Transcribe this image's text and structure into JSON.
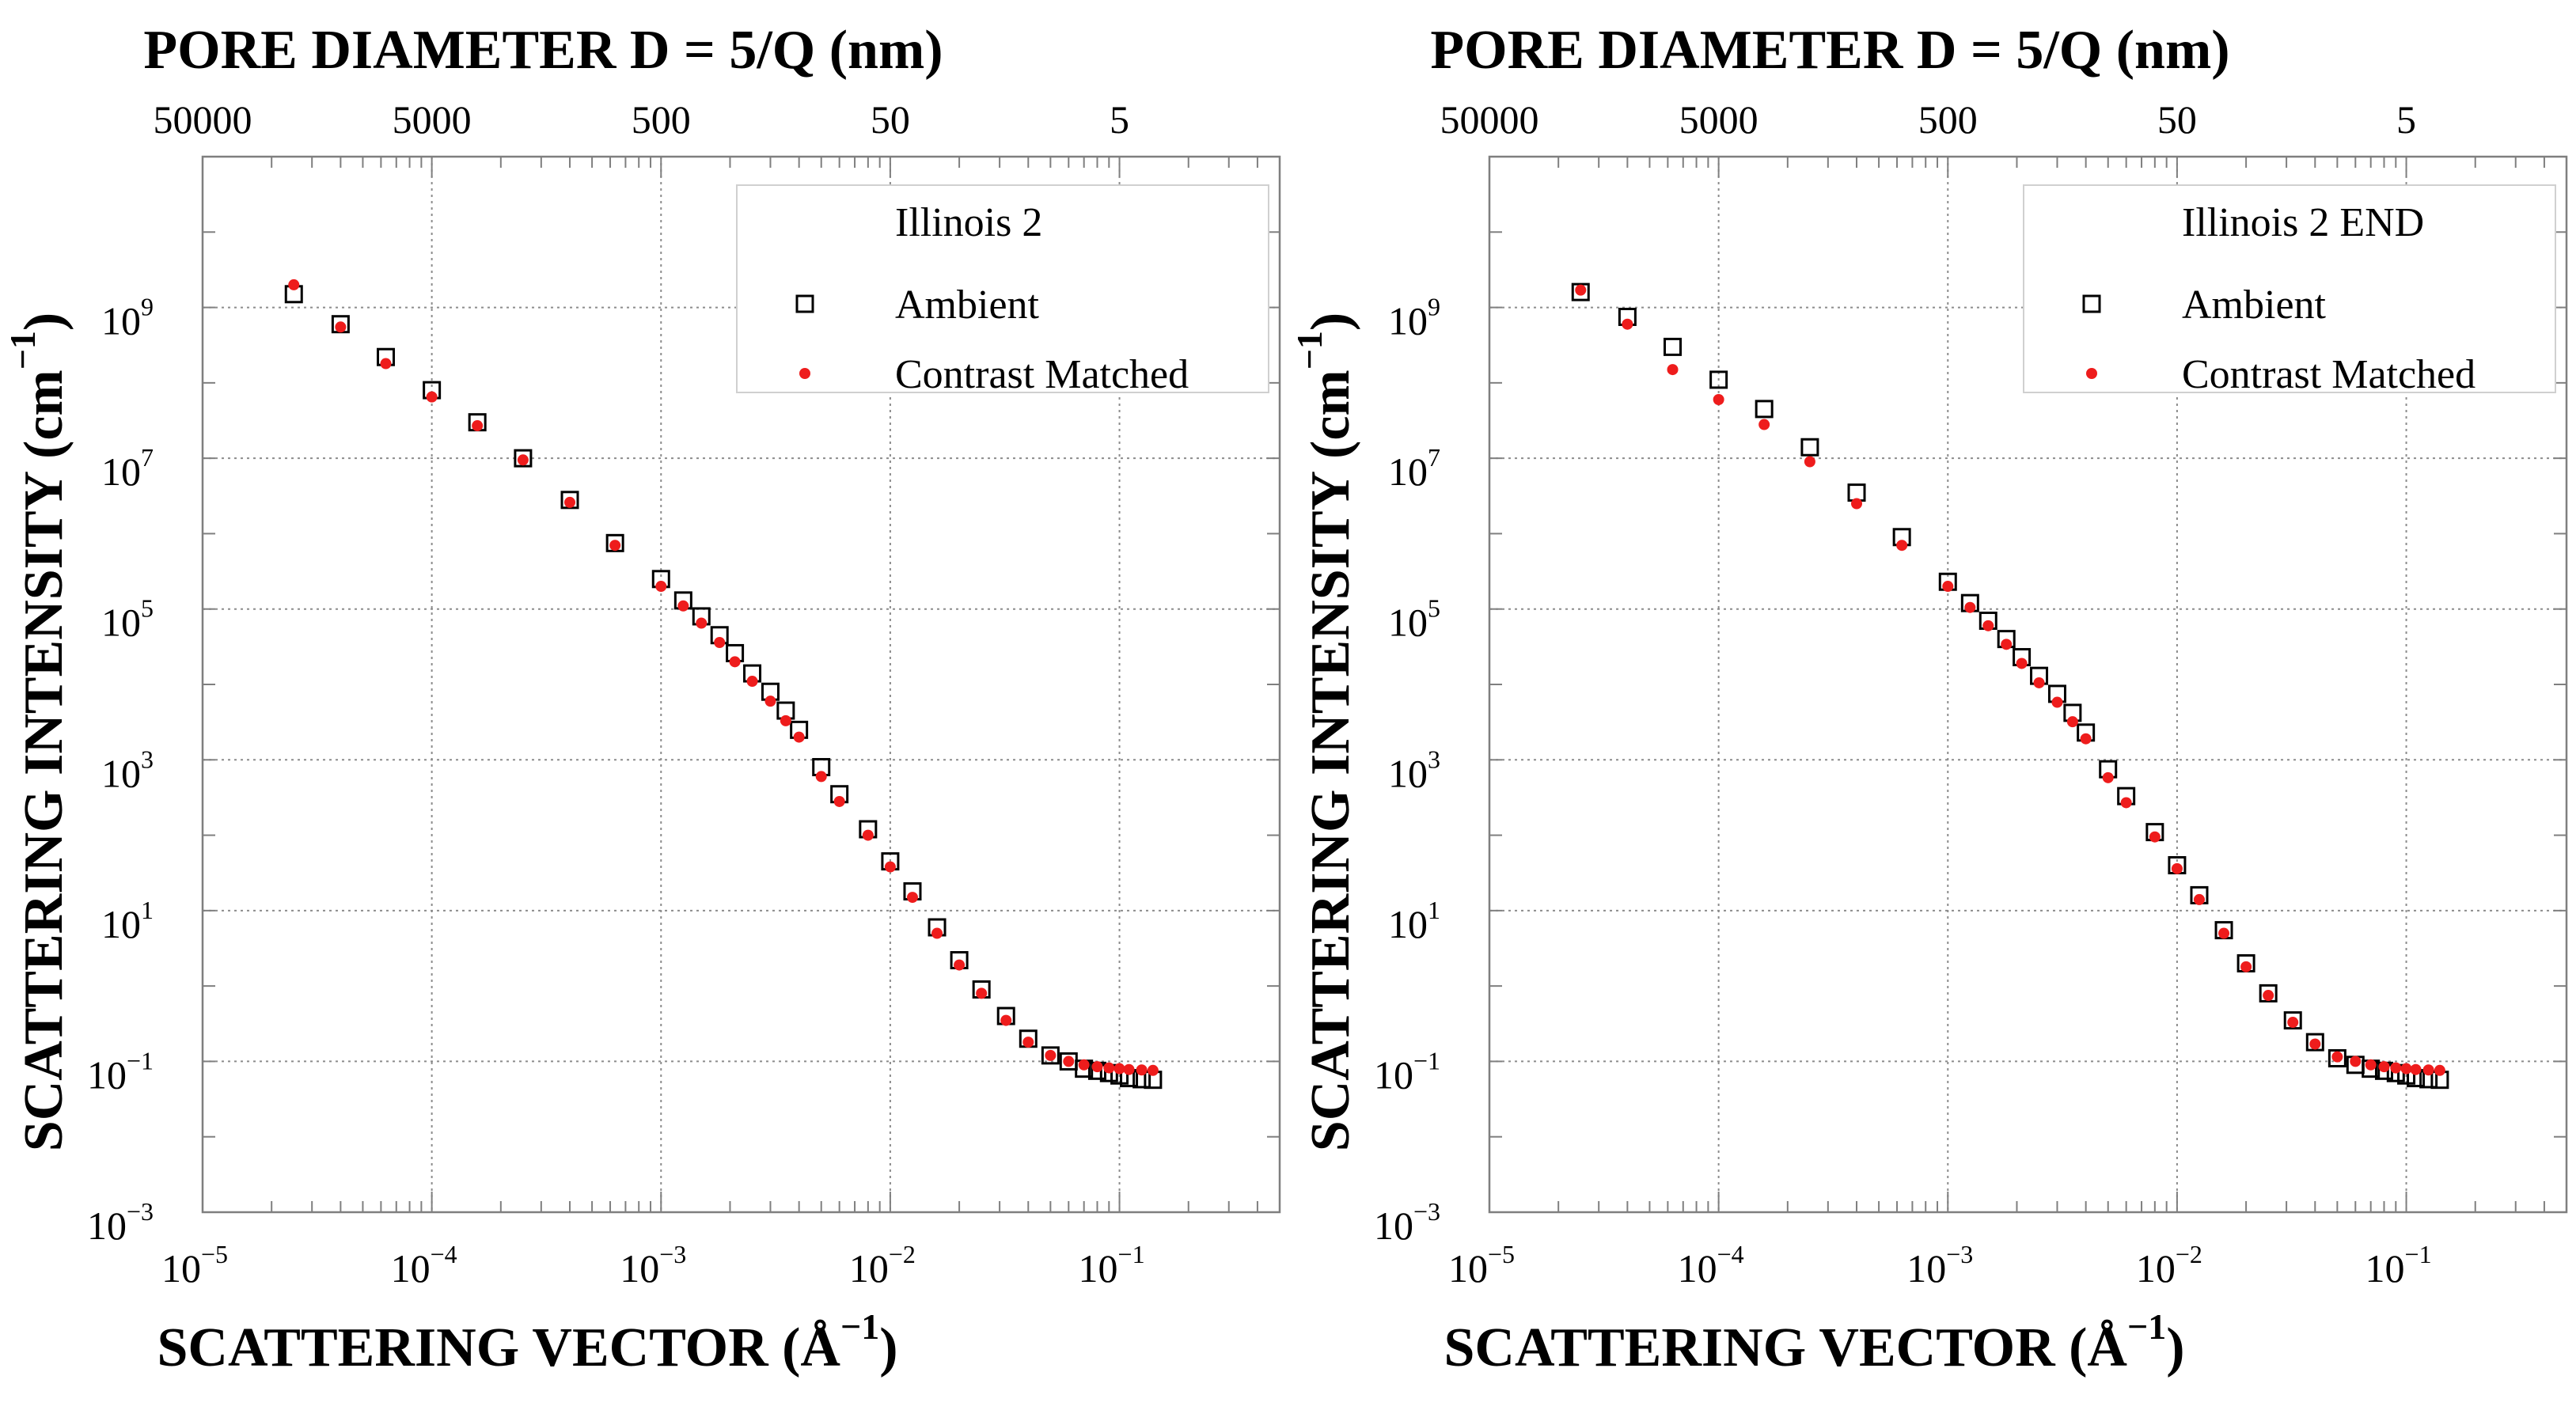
{
  "chart_data": [
    {
      "type": "scatter",
      "panel": "left",
      "legend_title": "Illinois 2",
      "legend_location": "top-right",
      "top_axis_title": "PORE DIAMETER D = 5/Q (nm)",
      "top_tick_labels": [
        "50000",
        "5000",
        "500",
        "50",
        "5"
      ],
      "top_tick_q": [
        1e-05,
        0.0001,
        0.001,
        0.01,
        0.1
      ],
      "xlabel": "SCATTERING VECTOR (Å",
      "xlabel_exp": "−1",
      "xlabel_close": ")",
      "ylabel": "SCATTERING INTENSITY (cm",
      "ylabel_exp": "−1",
      "ylabel_close": ")",
      "xscale": "log",
      "yscale": "log",
      "xlim": [
        1e-05,
        0.5
      ],
      "ylim": [
        0.001,
        100000000000.0
      ],
      "xticks": [
        1e-05,
        0.0001,
        0.001,
        0.01,
        0.1
      ],
      "xtick_labels": [
        [
          "10",
          "−5"
        ],
        [
          "10",
          "−4"
        ],
        [
          "10",
          "−3"
        ],
        [
          "10",
          "−2"
        ],
        [
          "10",
          "−1"
        ]
      ],
      "yticks": [
        0.001,
        0.1,
        10,
        1000,
        100000,
        10000000,
        1000000000
      ],
      "ytick_labels": [
        [
          "10",
          "−3"
        ],
        [
          "10",
          "−1"
        ],
        [
          "10",
          "1"
        ],
        [
          "10",
          "3"
        ],
        [
          "10",
          "5"
        ],
        [
          "10",
          "7"
        ],
        [
          "10",
          "9"
        ]
      ],
      "grid": true,
      "series": [
        {
          "name": "Ambient",
          "marker": "open-square",
          "color": "#000000",
          "x": [
            2.5e-05,
            4e-05,
            6.3e-05,
            0.0001,
            0.000158,
            0.00025,
            0.0004,
            0.00063,
            0.001,
            0.00125,
            0.0015,
            0.0018,
            0.0021,
            0.0025,
            0.003,
            0.0035,
            0.004,
            0.005,
            0.006,
            0.008,
            0.01,
            0.0125,
            0.016,
            0.02,
            0.025,
            0.032,
            0.04,
            0.05,
            0.06,
            0.07,
            0.08,
            0.09,
            0.1,
            0.11,
            0.125,
            0.14
          ],
          "y": [
            1500000000,
            600000000,
            220000000,
            80000000,
            30000000,
            10000000,
            2800000,
            750000,
            250000,
            130000,
            80000,
            45000,
            26000,
            14000,
            8000,
            4500,
            2500,
            800,
            350,
            120,
            45,
            18,
            6,
            2.2,
            0.9,
            0.4,
            0.2,
            0.12,
            0.1,
            0.08,
            0.075,
            0.07,
            0.065,
            0.06,
            0.058,
            0.057
          ]
        },
        {
          "name": "Contrast Matched",
          "marker": "dot",
          "color": "#ee1c1c",
          "x": [
            2.5e-05,
            4e-05,
            6.3e-05,
            0.0001,
            0.000158,
            0.00025,
            0.0004,
            0.00063,
            0.001,
            0.00125,
            0.0015,
            0.0018,
            0.0021,
            0.0025,
            0.003,
            0.0035,
            0.004,
            0.005,
            0.006,
            0.008,
            0.01,
            0.0125,
            0.016,
            0.02,
            0.025,
            0.032,
            0.04,
            0.05,
            0.06,
            0.07,
            0.08,
            0.09,
            0.1,
            0.11,
            0.125,
            0.14
          ],
          "y": [
            2000000000,
            550000000,
            180000000,
            65000000,
            27000000,
            9500000,
            2600000,
            700000,
            200000,
            110000,
            65000,
            36000,
            20000,
            11000,
            6000,
            3300,
            2000,
            600,
            280,
            100,
            38,
            15,
            5,
            1.9,
            0.8,
            0.35,
            0.18,
            0.12,
            0.1,
            0.09,
            0.085,
            0.082,
            0.08,
            0.078,
            0.077,
            0.076
          ]
        }
      ]
    },
    {
      "type": "scatter",
      "panel": "right",
      "legend_title": "Illinois 2 END",
      "legend_location": "top-right",
      "top_axis_title": "PORE DIAMETER D = 5/Q (nm)",
      "top_tick_labels": [
        "50000",
        "5000",
        "500",
        "50",
        "5"
      ],
      "top_tick_q": [
        1e-05,
        0.0001,
        0.001,
        0.01,
        0.1
      ],
      "xlabel": "SCATTERING VECTOR (Å",
      "xlabel_exp": "−1",
      "xlabel_close": ")",
      "ylabel": "SCATTERING INTENSITY (cm",
      "ylabel_exp": "−1",
      "ylabel_close": ")",
      "xscale": "log",
      "yscale": "log",
      "xlim": [
        1e-05,
        0.5
      ],
      "ylim": [
        0.001,
        100000000000.0
      ],
      "xticks": [
        1e-05,
        0.0001,
        0.001,
        0.01,
        0.1
      ],
      "xtick_labels": [
        [
          "10",
          "−5"
        ],
        [
          "10",
          "−4"
        ],
        [
          "10",
          "−3"
        ],
        [
          "10",
          "−2"
        ],
        [
          "10",
          "−1"
        ]
      ],
      "yticks": [
        0.001,
        0.1,
        10,
        1000,
        100000,
        10000000,
        1000000000
      ],
      "ytick_labels": [
        [
          "10",
          "−3"
        ],
        [
          "10",
          "−1"
        ],
        [
          "10",
          "1"
        ],
        [
          "10",
          "3"
        ],
        [
          "10",
          "5"
        ],
        [
          "10",
          "7"
        ],
        [
          "10",
          "9"
        ]
      ],
      "grid": true,
      "series": [
        {
          "name": "Ambient",
          "marker": "open-square",
          "color": "#000000",
          "x": [
            2.5e-05,
            4e-05,
            6.3e-05,
            0.0001,
            0.000158,
            0.00025,
            0.0004,
            0.00063,
            0.001,
            0.00125,
            0.0015,
            0.0018,
            0.0021,
            0.0025,
            0.003,
            0.0035,
            0.004,
            0.005,
            0.006,
            0.008,
            0.01,
            0.0125,
            0.016,
            0.02,
            0.025,
            0.032,
            0.04,
            0.05,
            0.06,
            0.07,
            0.08,
            0.09,
            0.1,
            0.11,
            0.125,
            0.14
          ],
          "y": [
            1600000000,
            750000000,
            300000000,
            110000000,
            45000000,
            14000000,
            3500000,
            900000,
            230000,
            120000,
            70000,
            40000,
            23000,
            13000,
            7500,
            4200,
            2300,
            750,
            330,
            110,
            40,
            16,
            5.5,
            2,
            0.8,
            0.35,
            0.18,
            0.11,
            0.09,
            0.08,
            0.075,
            0.07,
            0.065,
            0.06,
            0.058,
            0.057
          ]
        },
        {
          "name": "Contrast Matched",
          "marker": "dot",
          "color": "#ee1c1c",
          "x": [
            2.5e-05,
            4e-05,
            6.3e-05,
            0.0001,
            0.000158,
            0.00025,
            0.0004,
            0.00063,
            0.001,
            0.00125,
            0.0015,
            0.0018,
            0.0021,
            0.0025,
            0.003,
            0.0035,
            0.004,
            0.005,
            0.006,
            0.008,
            0.01,
            0.0125,
            0.016,
            0.02,
            0.025,
            0.032,
            0.04,
            0.05,
            0.06,
            0.07,
            0.08,
            0.09,
            0.1,
            0.11,
            0.125,
            0.14
          ],
          "y": [
            1700000000,
            600000000,
            150000000,
            60000000,
            28000000,
            9000000,
            2500000,
            700000,
            200000,
            105000,
            60000,
            34000,
            19000,
            10500,
            5800,
            3200,
            1900,
            580,
            270,
            95,
            36,
            14,
            5,
            1.8,
            0.75,
            0.33,
            0.17,
            0.115,
            0.1,
            0.09,
            0.085,
            0.082,
            0.08,
            0.078,
            0.077,
            0.076
          ]
        }
      ]
    }
  ]
}
